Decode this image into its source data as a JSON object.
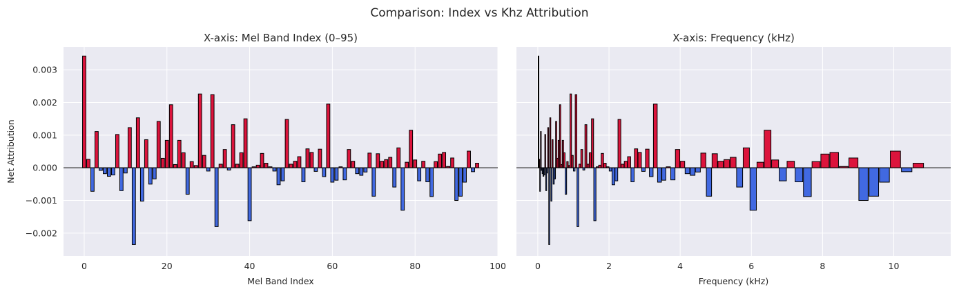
{
  "figure": {
    "title": "Comparison: Index vs Khz Attribution"
  },
  "colors": {
    "positive": "#dc143c",
    "negative": "#4169e1",
    "edge": "#000000",
    "plot_bg": "#eaeaf2",
    "grid": "#ffffff"
  },
  "chart_data": [
    {
      "type": "bar",
      "title": "X-axis: Mel Band Index (0–95)",
      "xlabel": "Mel Band Index",
      "ylabel": "Net Attribution",
      "xlim": [
        -5,
        100
      ],
      "ylim": [
        -0.0027,
        0.0037
      ],
      "xticks": [
        0,
        20,
        40,
        60,
        80,
        100
      ],
      "yticks": [
        -0.002,
        -0.001,
        0.0,
        0.001,
        0.002,
        0.003
      ],
      "ytick_labels": [
        "−0.002",
        "−0.001",
        "0.000",
        "0.001",
        "0.002",
        "0.003"
      ],
      "grid": true,
      "x": [
        0,
        1,
        2,
        3,
        4,
        5,
        6,
        7,
        8,
        9,
        10,
        11,
        12,
        13,
        14,
        15,
        16,
        17,
        18,
        19,
        20,
        21,
        22,
        23,
        24,
        25,
        26,
        27,
        28,
        29,
        30,
        31,
        32,
        33,
        34,
        35,
        36,
        37,
        38,
        39,
        40,
        41,
        42,
        43,
        44,
        45,
        46,
        47,
        48,
        49,
        50,
        51,
        52,
        53,
        54,
        55,
        56,
        57,
        58,
        59,
        60,
        61,
        62,
        63,
        64,
        65,
        66,
        67,
        68,
        69,
        70,
        71,
        72,
        73,
        74,
        75,
        76,
        77,
        78,
        79,
        80,
        81,
        82,
        83,
        84,
        85,
        86,
        87,
        88,
        89,
        90,
        91,
        92,
        93,
        94,
        95
      ],
      "values": [
        0.00342,
        0.00026,
        -0.00072,
        0.00111,
        -8e-05,
        -0.00018,
        -0.00026,
        -0.00022,
        0.00102,
        -0.0007,
        -0.00016,
        0.00123,
        -0.00235,
        0.00153,
        -0.00102,
        0.00086,
        -0.0005,
        -0.00034,
        0.00142,
        0.00029,
        0.00084,
        0.00193,
        0.0001,
        0.00084,
        0.00046,
        -0.00081,
        0.00019,
        7e-05,
        0.00226,
        0.00038,
        -0.0001,
        0.00224,
        -0.0018,
        0.00011,
        0.00056,
        -7e-05,
        0.00132,
        0.00011,
        0.00046,
        0.0015,
        -0.00162,
        3e-05,
        8e-05,
        0.00044,
        0.00014,
        3e-05,
        -0.0001,
        -0.00052,
        -0.0004,
        0.00148,
        0.00011,
        0.0002,
        0.00034,
        -0.00043,
        0.00058,
        0.00047,
        -0.00011,
        0.00057,
        -0.00027,
        0.00195,
        -0.00044,
        -0.00038,
        3e-05,
        -0.00037,
        0.00056,
        0.0002,
        -0.00018,
        -0.00023,
        -0.00013,
        0.00045,
        -0.00087,
        0.00043,
        0.0002,
        0.00025,
        0.00032,
        -0.00059,
        0.00061,
        -0.0013,
        0.00017,
        0.00115,
        0.00024,
        -0.0004,
        0.0002,
        -0.00043,
        -0.00088,
        0.00019,
        0.00042,
        0.00047,
        4e-05,
        0.0003,
        -0.001,
        -0.00087,
        -0.00044,
        0.00051,
        -0.00012,
        0.00014
      ]
    },
    {
      "type": "bar",
      "title": "X-axis: Frequency (kHz)",
      "xlabel": "Frequency (kHz)",
      "ylabel": "",
      "xlim": [
        -0.6,
        11.6
      ],
      "ylim": [
        -0.0027,
        0.0037
      ],
      "xticks": [
        0,
        2,
        4,
        6,
        8,
        10
      ],
      "grid": true,
      "note_values": "same values as panel 1, placed at mel band center frequencies",
      "freq_min_khz": 0.0,
      "freq_max_khz": 11.025,
      "bar_count": 96
    }
  ]
}
